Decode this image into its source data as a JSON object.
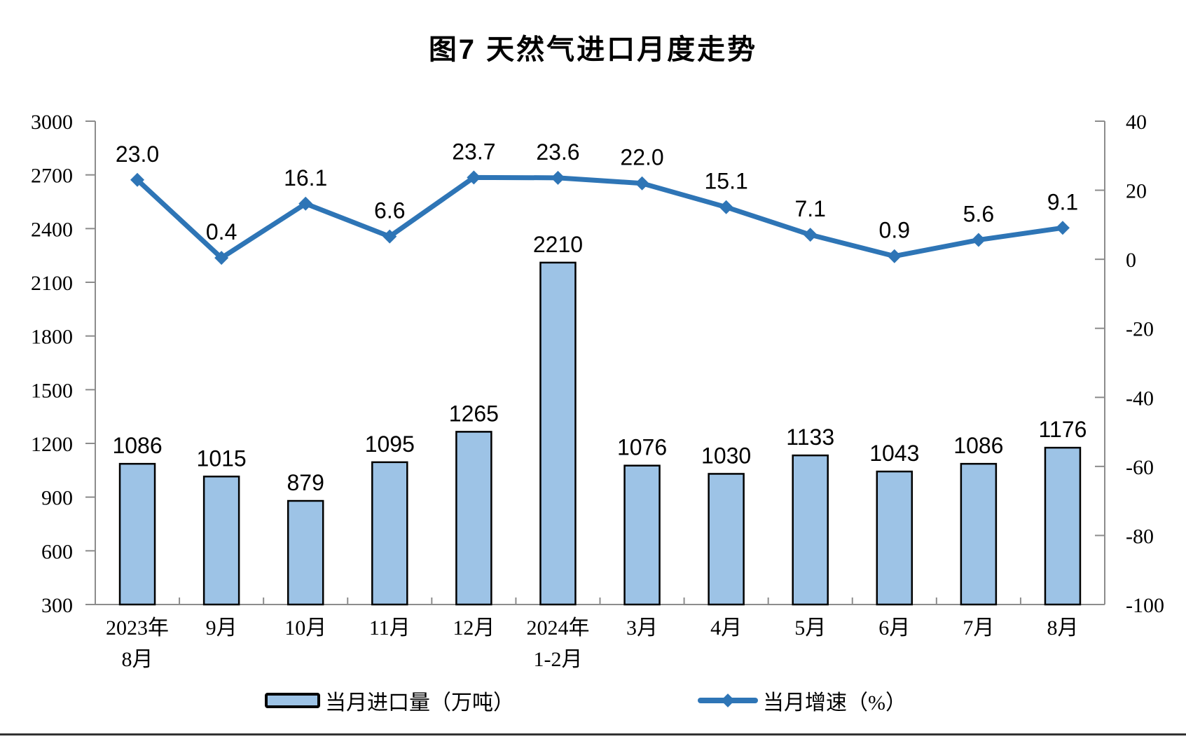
{
  "chart_data": {
    "type": "combo",
    "title": "图7 天然气进口月度走势",
    "categories": [
      [
        "2023年",
        "8月"
      ],
      [
        "9月"
      ],
      [
        "10月"
      ],
      [
        "11月"
      ],
      [
        "12月"
      ],
      [
        "2024年",
        "1-2月"
      ],
      [
        "3月"
      ],
      [
        "4月"
      ],
      [
        "5月"
      ],
      [
        "6月"
      ],
      [
        "7月"
      ],
      [
        "8月"
      ]
    ],
    "series": [
      {
        "name": "当月进口量（万吨）",
        "type": "bar",
        "axis": "left",
        "decimals": 0,
        "values": [
          1086,
          1015,
          879,
          1095,
          1265,
          2210,
          1076,
          1030,
          1133,
          1043,
          1086,
          1176
        ]
      },
      {
        "name": "当月增速（%）",
        "type": "line",
        "axis": "right",
        "decimals": 1,
        "values": [
          23.0,
          0.4,
          16.1,
          6.6,
          23.7,
          23.6,
          22.0,
          15.1,
          7.1,
          0.9,
          5.6,
          9.1
        ]
      }
    ],
    "left_axis": {
      "min": 300,
      "max": 3000,
      "step": 300
    },
    "right_axis": {
      "min": -100,
      "max": 40,
      "step": 20
    },
    "grid": false,
    "legend_position": "bottom",
    "colors": {
      "bar_fill": "#9DC3E6",
      "bar_stroke": "#000000",
      "line": "#2E75B6",
      "axis": "#8C8C8C",
      "text": "#000000"
    }
  }
}
